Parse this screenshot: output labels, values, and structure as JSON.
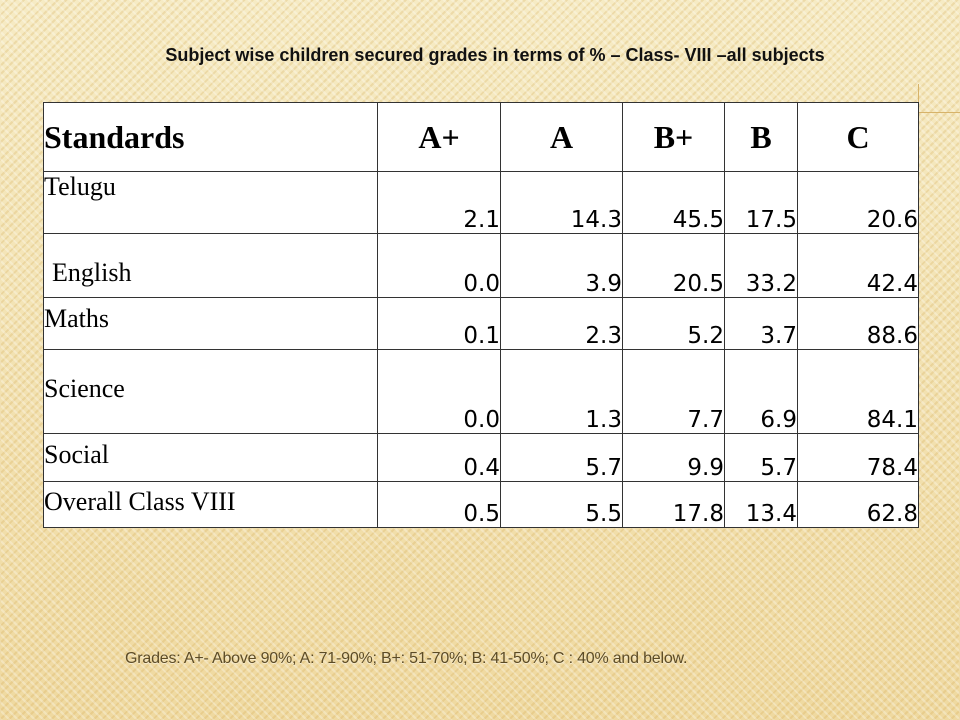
{
  "title": "Subject wise children secured grades  in terms of  % – Class- VIII –all subjects",
  "table": {
    "headers": [
      "Standards",
      "A+",
      "A",
      "B+",
      "B",
      "C"
    ],
    "rows": [
      {
        "subject": "Telugu",
        "values": [
          "2.1",
          "14.3",
          "45.5",
          "17.5",
          "20.6"
        ]
      },
      {
        "subject": "English",
        "values": [
          "0.0",
          "3.9",
          "20.5",
          "33.2",
          "42.4"
        ]
      },
      {
        "subject": "Maths",
        "values": [
          "0.1",
          "2.3",
          "5.2",
          "3.7",
          "88.6"
        ]
      },
      {
        "subject": "Science",
        "values": [
          "0.0",
          "1.3",
          "7.7",
          "6.9",
          "84.1"
        ]
      },
      {
        "subject": "Social",
        "values": [
          "0.4",
          "5.7",
          "9.9",
          "5.7",
          "78.4"
        ]
      },
      {
        "subject": "Overall Class VIII",
        "values": [
          "0.5",
          "5.5",
          "17.8",
          "13.4",
          "62.8"
        ]
      }
    ]
  },
  "footnote": "Grades: A+- Above 90%; A: 71-90%; B+: 51-70%; B: 41-50%; C : 40% and below."
}
